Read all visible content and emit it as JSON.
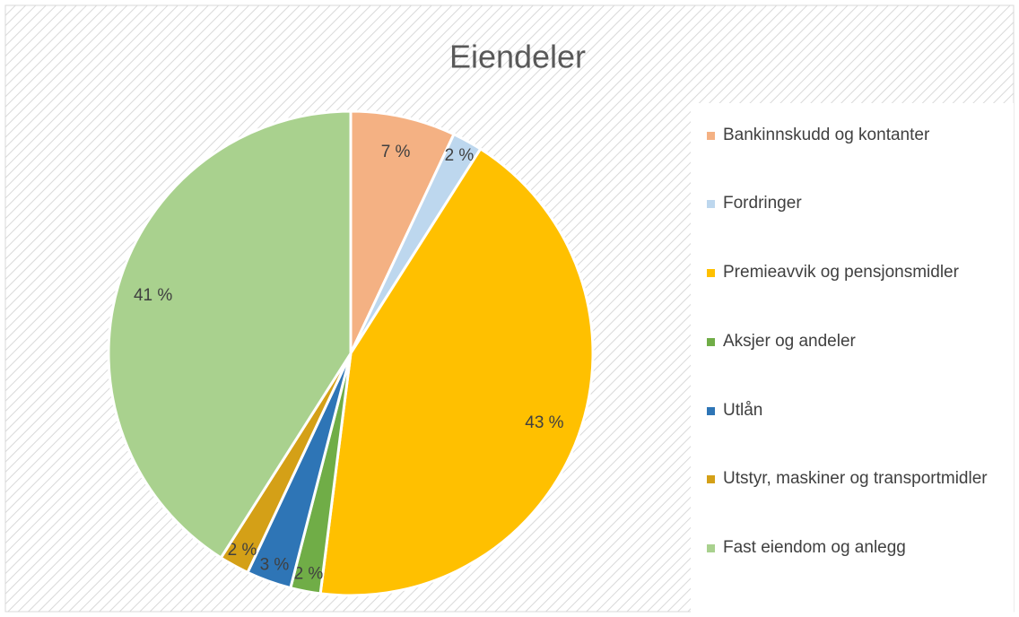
{
  "chart_data": {
    "type": "pie",
    "title": "Eiendeler",
    "categories": [
      "Bankinnskudd og kontanter",
      "Fordringer",
      "Premieavvik og pensjonsmidler",
      "Aksjer og andeler",
      "Utlån",
      "Utstyr, maskiner og transportmidler",
      "Fast eiendom og anlegg"
    ],
    "values": [
      7,
      2,
      43,
      2,
      3,
      2,
      41
    ],
    "value_labels": [
      "7 %",
      "2 %",
      "43 %",
      "2 %",
      "3 %",
      "2 %",
      "41 %"
    ],
    "colors": [
      "#f4b183",
      "#bdd7ee",
      "#ffc000",
      "#70ad47",
      "#2e75b6",
      "#d4a017",
      "#a9d18e"
    ],
    "legend": "right"
  }
}
